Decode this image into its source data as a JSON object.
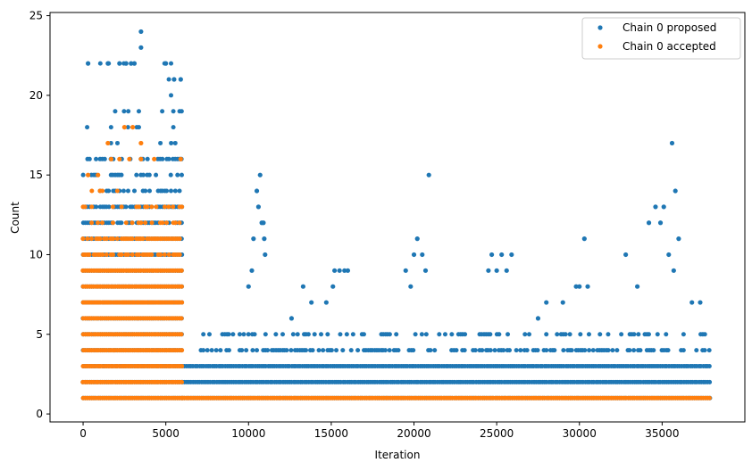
{
  "chart_data": {
    "type": "scatter",
    "title": "",
    "xlabel": "Iteration",
    "ylabel": "Count",
    "xlim": [
      -2000,
      40000
    ],
    "ylim": [
      -0.5,
      25.2
    ],
    "xticks": [
      0,
      5000,
      10000,
      15000,
      20000,
      25000,
      30000,
      35000
    ],
    "xtick_labels": [
      "0",
      "5000",
      "10000",
      "15000",
      "20000",
      "25000",
      "30000",
      "35000"
    ],
    "yticks": [
      0,
      5,
      10,
      15,
      20,
      25
    ],
    "ytick_labels": [
      "0",
      "5",
      "10",
      "15",
      "20",
      "25"
    ],
    "grid": false,
    "legend_position": "top-right",
    "series": [
      {
        "name": "Chain 0 proposed",
        "color": "#1f77b4",
        "marker": "circle",
        "bands": [
          {
            "x_range": [
              0,
              6000
            ],
            "y_values": [
              1,
              2,
              3,
              4,
              5,
              6,
              7,
              8,
              9,
              10,
              11,
              12,
              13,
              14,
              15,
              16,
              17,
              18,
              19,
              20,
              21,
              22
            ]
          },
          {
            "x_range": [
              6000,
              38000
            ],
            "y_values": [
              1,
              2,
              3
            ]
          },
          {
            "x_range": [
              7000,
              38000
            ],
            "y_values": [
              4,
              5
            ]
          }
        ],
        "points": [
          [
            300,
            22
          ],
          [
            1500,
            22
          ],
          [
            2200,
            22
          ],
          [
            2600,
            22
          ],
          [
            2900,
            22
          ],
          [
            3100,
            22
          ],
          [
            5000,
            22
          ],
          [
            3500,
            24
          ],
          [
            3500,
            23
          ],
          [
            5500,
            21
          ],
          [
            5900,
            21
          ],
          [
            10000,
            8
          ],
          [
            10200,
            9
          ],
          [
            10300,
            11
          ],
          [
            10500,
            14
          ],
          [
            10600,
            13
          ],
          [
            10700,
            15
          ],
          [
            10800,
            12
          ],
          [
            10900,
            12
          ],
          [
            11000,
            10
          ],
          [
            10950,
            11
          ],
          [
            12600,
            6
          ],
          [
            13300,
            8
          ],
          [
            13800,
            7
          ],
          [
            14700,
            7
          ],
          [
            15100,
            8
          ],
          [
            15200,
            9
          ],
          [
            15500,
            9
          ],
          [
            15800,
            9
          ],
          [
            16000,
            9
          ],
          [
            19500,
            9
          ],
          [
            19800,
            8
          ],
          [
            20000,
            10
          ],
          [
            20200,
            11
          ],
          [
            20500,
            10
          ],
          [
            20700,
            9
          ],
          [
            20900,
            15
          ],
          [
            24500,
            9
          ],
          [
            24700,
            10
          ],
          [
            25000,
            9
          ],
          [
            25300,
            10
          ],
          [
            25600,
            9
          ],
          [
            25900,
            10
          ],
          [
            27500,
            6
          ],
          [
            28000,
            7
          ],
          [
            29000,
            7
          ],
          [
            29800,
            8
          ],
          [
            30000,
            8
          ],
          [
            30300,
            11
          ],
          [
            30500,
            8
          ],
          [
            32800,
            10
          ],
          [
            33500,
            8
          ],
          [
            34200,
            12
          ],
          [
            34600,
            13
          ],
          [
            34900,
            12
          ],
          [
            35100,
            13
          ],
          [
            35400,
            10
          ],
          [
            35600,
            17
          ],
          [
            35800,
            14
          ],
          [
            36000,
            11
          ],
          [
            35700,
            9
          ],
          [
            36800,
            7
          ],
          [
            37300,
            7
          ]
        ]
      },
      {
        "name": "Chain 0 accepted",
        "color": "#ff7f0e",
        "marker": "circle",
        "bands": [
          {
            "x_range": [
              0,
              6000
            ],
            "y_values": [
              1,
              2,
              3,
              4,
              5,
              6,
              7,
              8,
              9,
              10,
              11,
              12,
              13,
              14
            ]
          },
          {
            "x_range": [
              6000,
              38000
            ],
            "y_values": [
              1
            ]
          }
        ],
        "points": [
          [
            300,
            15
          ],
          [
            900,
            15
          ],
          [
            1700,
            16
          ],
          [
            2200,
            16
          ],
          [
            2800,
            16
          ],
          [
            3500,
            16
          ],
          [
            5900,
            16
          ],
          [
            1500,
            17
          ],
          [
            3500,
            17
          ],
          [
            2500,
            18
          ],
          [
            3000,
            18
          ],
          [
            4300,
            16
          ]
        ]
      }
    ]
  }
}
